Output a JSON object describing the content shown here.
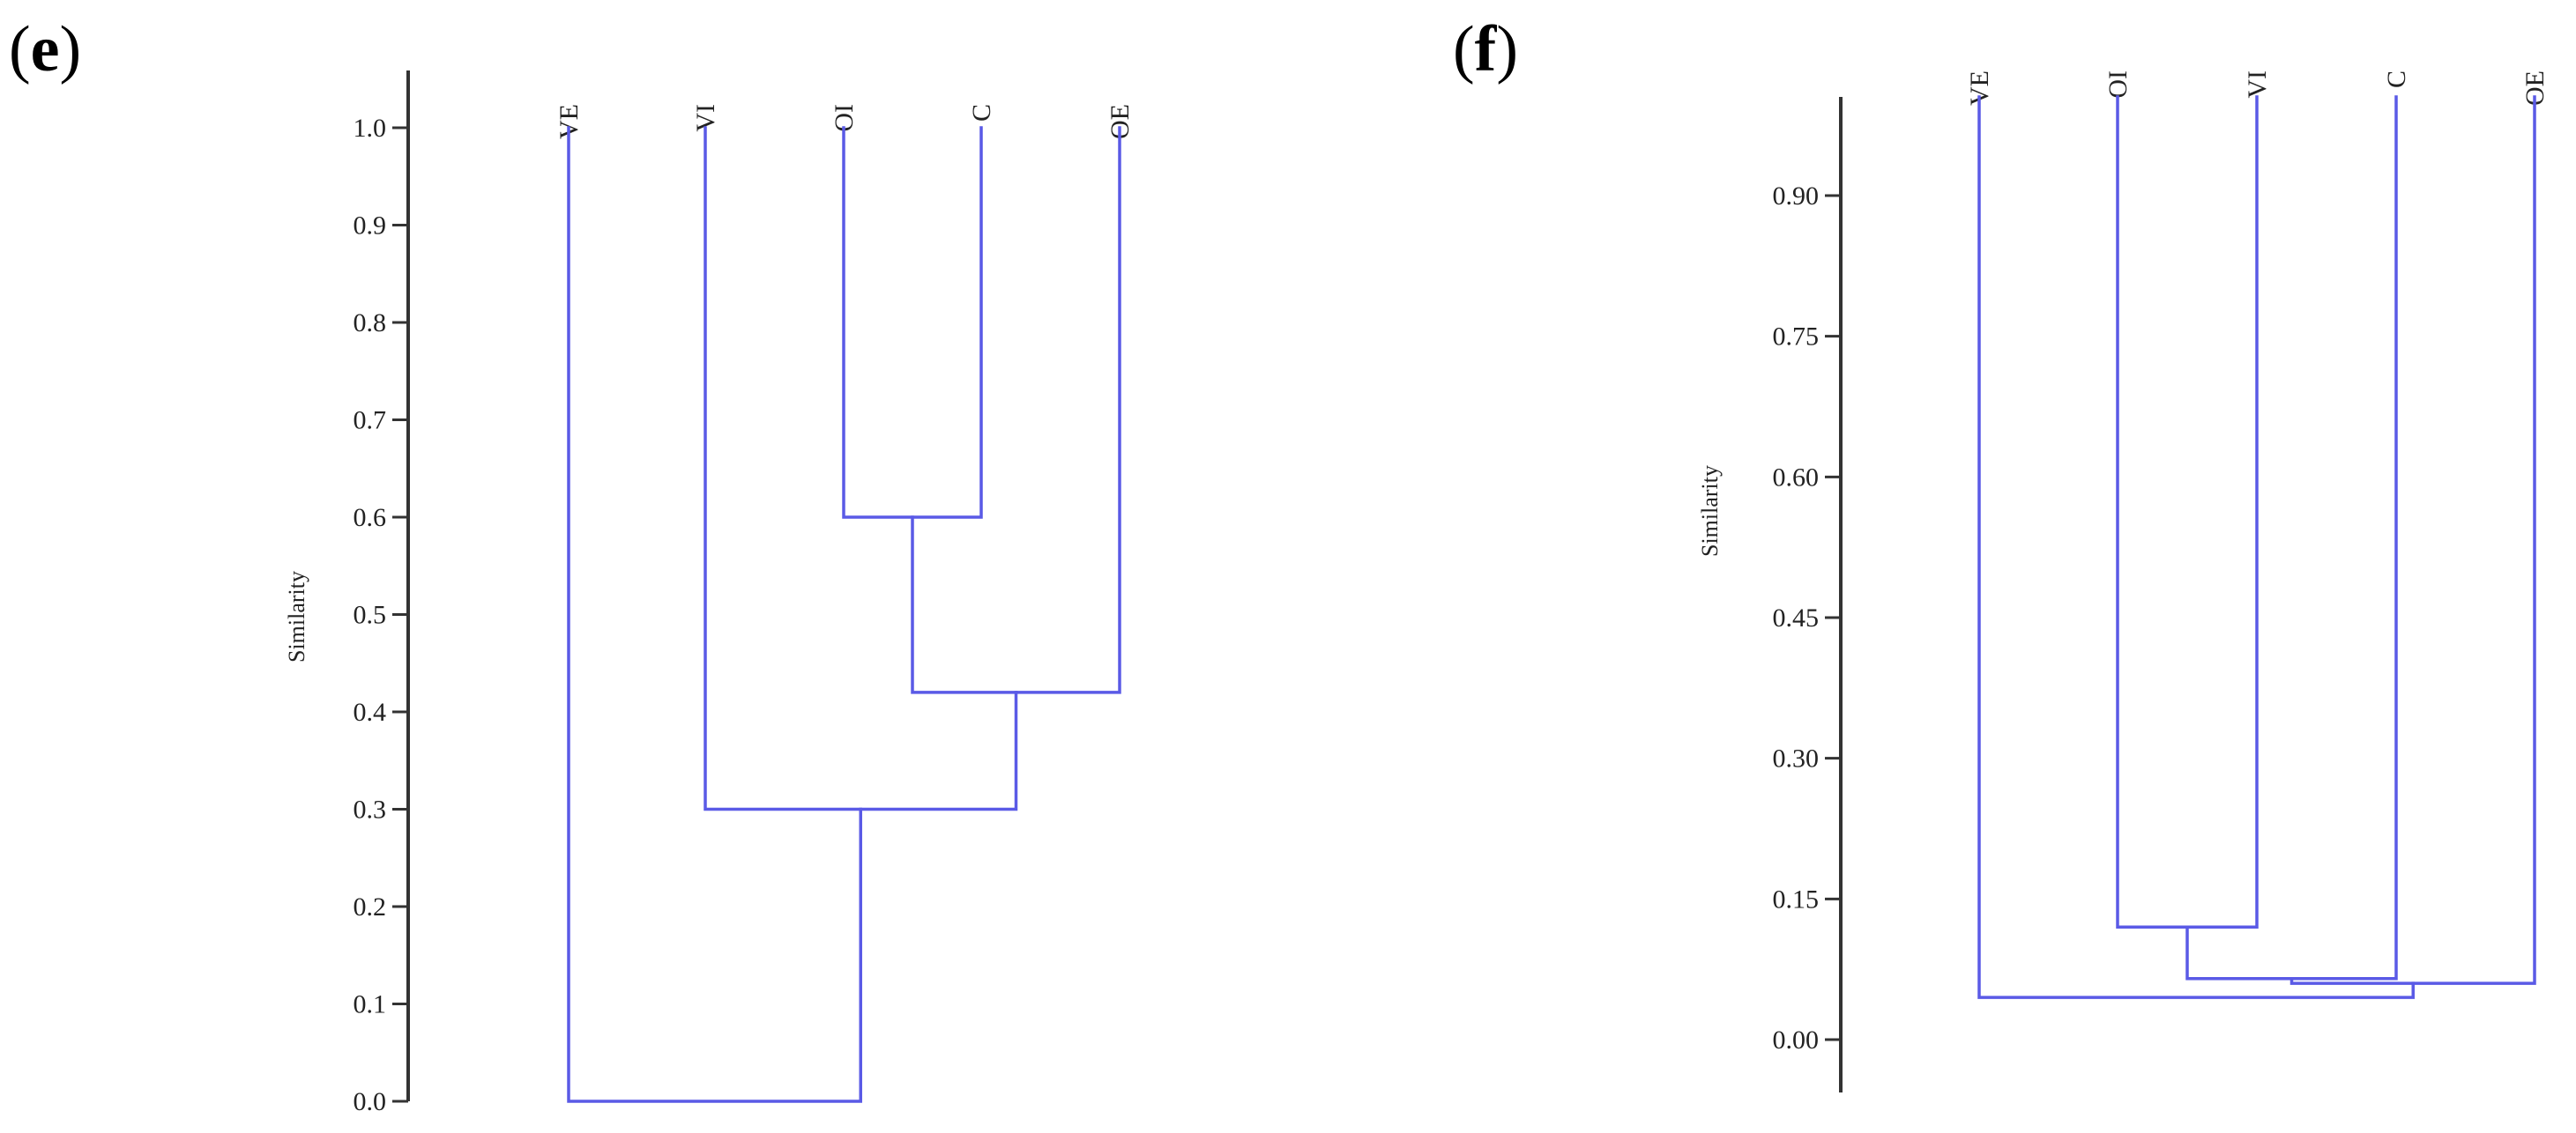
{
  "panels": [
    {
      "id": "e",
      "label": "e",
      "axis_title": "Similarity",
      "ticks": [
        "0.0",
        "0.1",
        "0.2",
        "0.3",
        "0.4",
        "0.5",
        "0.6",
        "0.7",
        "0.8",
        "0.9",
        "1.0"
      ],
      "tick_values": [
        0.0,
        0.1,
        0.2,
        0.3,
        0.4,
        0.5,
        0.6,
        0.7,
        0.8,
        0.9,
        1.0
      ],
      "leaves": [
        "VE",
        "VI",
        "OI",
        "C",
        "OE"
      ],
      "merges": [
        {
          "a": "OI",
          "b": "C",
          "similarity": 0.6
        },
        {
          "a": "OI+C",
          "b": "OE",
          "similarity": 0.42
        },
        {
          "a": "VI",
          "b": "OI+C+OE",
          "similarity": 0.3
        },
        {
          "a": "VE",
          "b": "VI+OI+C+OE",
          "similarity": 0.0
        }
      ],
      "branch_color": "#5a5ae6"
    },
    {
      "id": "f",
      "label": "f",
      "axis_title": "Similarity",
      "ticks": [
        "0.00",
        "0.15",
        "0.30",
        "0.45",
        "0.60",
        "0.75",
        "0.90"
      ],
      "tick_values": [
        0.0,
        0.15,
        0.3,
        0.45,
        0.6,
        0.75,
        0.9
      ],
      "leaves": [
        "VE",
        "OI",
        "VI",
        "C",
        "OE"
      ],
      "merges": [
        {
          "a": "OI",
          "b": "VI",
          "similarity": 0.12
        },
        {
          "a": "OI+VI",
          "b": "C",
          "similarity": 0.065
        },
        {
          "a": "OI+VI+C",
          "b": "OE",
          "similarity": 0.06
        },
        {
          "a": "VE",
          "b": "OI+VI+C+OE",
          "similarity": 0.045
        }
      ],
      "branch_color": "#5a5ae6"
    }
  ]
}
